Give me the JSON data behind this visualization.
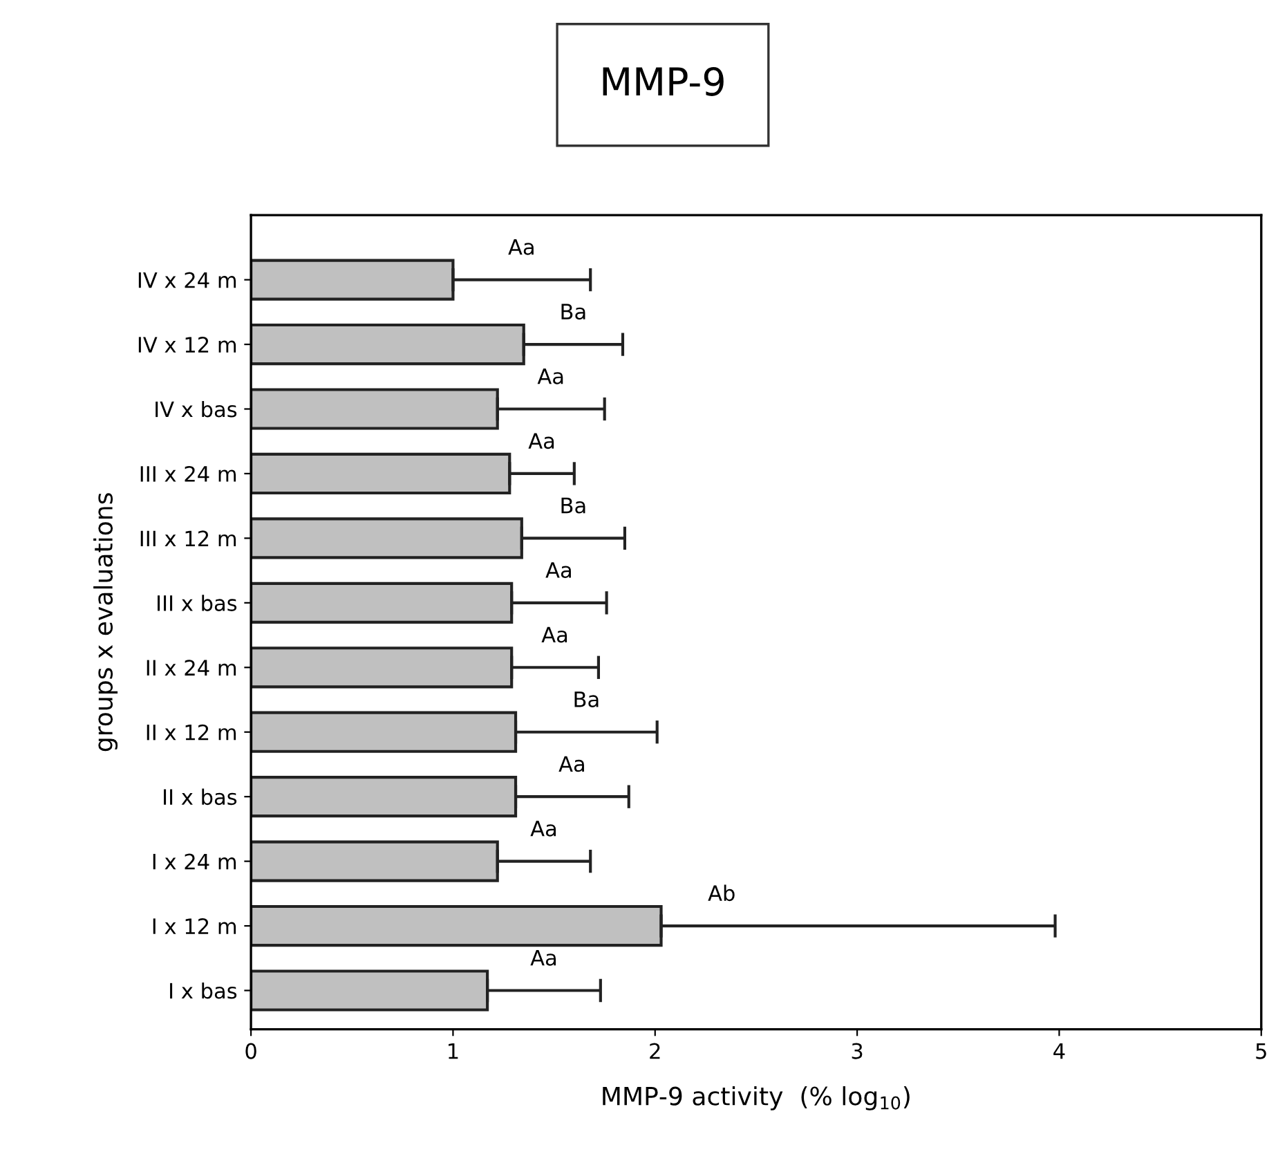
{
  "chart_data": {
    "type": "bar",
    "orientation": "horizontal",
    "title": "MMP-9",
    "xlabel": "MMP-9 activity  (% log$_{10}$)",
    "ylabel": "groups x evaluations",
    "categories": [
      "IV x 24 m",
      "IV x 12 m",
      "IV x bas",
      "III x 24 m",
      "III x 12 m",
      "III x bas",
      "II x 24 m",
      "II x 12 m",
      "II x bas",
      "I x 24 m",
      "I x 12 m",
      "I x bas"
    ],
    "values": [
      1.0,
      1.35,
      1.22,
      1.28,
      1.34,
      1.29,
      1.29,
      1.31,
      1.31,
      1.22,
      2.03,
      1.17
    ],
    "errors": [
      [
        1.0,
        1.68
      ],
      [
        1.35,
        1.84
      ],
      [
        1.22,
        1.75
      ],
      [
        1.28,
        1.6
      ],
      [
        1.34,
        1.85
      ],
      [
        1.29,
        1.76
      ],
      [
        1.29,
        1.72
      ],
      [
        1.31,
        2.01
      ],
      [
        1.31,
        1.87
      ],
      [
        1.22,
        1.68
      ],
      [
        2.03,
        3.98
      ],
      [
        1.17,
        1.73
      ]
    ],
    "value_labels": [
      "Aa",
      "Ba",
      "Aa",
      "Aa",
      "Ba",
      "Aa",
      "Aa",
      "Ba",
      "Aa",
      "Aa",
      "Ab",
      "Aa"
    ],
    "color": "#c0c0c0",
    "xlim": [
      0,
      5
    ],
    "xticks": [
      0,
      1,
      2,
      3,
      4,
      5
    ],
    "grid": false
  }
}
